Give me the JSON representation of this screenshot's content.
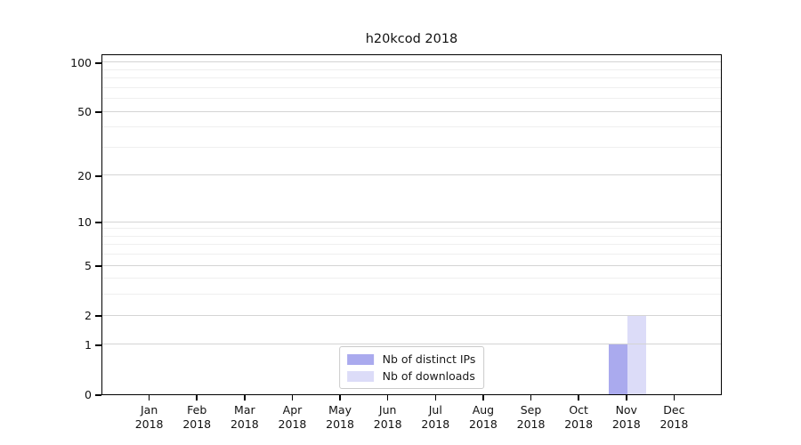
{
  "chart_data": {
    "type": "bar",
    "title": "h20kcod 2018",
    "categories": [
      "Jan",
      "Feb",
      "Mar",
      "Apr",
      "May",
      "Jun",
      "Jul",
      "Aug",
      "Sep",
      "Oct",
      "Nov",
      "Dec"
    ],
    "year": "2018",
    "series": [
      {
        "name": "Nb of distinct IPs",
        "color": "#aaaaee",
        "values": [
          0,
          0,
          0,
          0,
          0,
          0,
          0,
          0,
          0,
          0,
          1,
          0
        ]
      },
      {
        "name": "Nb of downloads",
        "color": "#dcdcf8",
        "values": [
          0,
          0,
          0,
          0,
          0,
          0,
          0,
          0,
          0,
          0,
          2,
          0
        ]
      }
    ],
    "y_axis": {
      "scale": "log1p",
      "major_ticks": [
        0,
        1,
        2,
        5,
        10,
        20,
        50,
        100
      ],
      "minor_ticks": [
        3,
        4,
        6,
        7,
        8,
        9,
        30,
        40,
        60,
        70,
        80,
        90
      ],
      "ylim": [
        0,
        113
      ]
    },
    "legend_position": "lower center",
    "grid": true,
    "colors": {
      "major_grid": "#d4d4d4",
      "minor_grid": "#efefef",
      "axis": "#000000",
      "background": "#ffffff"
    }
  }
}
